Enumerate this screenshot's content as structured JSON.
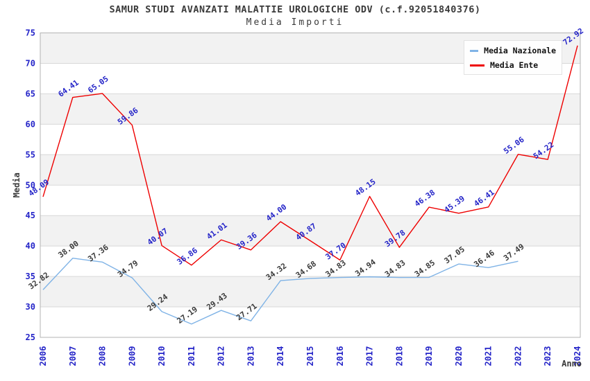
{
  "figure": {
    "background": "#ffffff"
  },
  "chart_data": {
    "type": "line",
    "title": "SAMUR STUDI AVANZATI MALATTIE UROLOGICHE ODV (c.f.92051840376)",
    "subtitle": "Media Importi",
    "xlabel": "Anno",
    "ylabel": "Media",
    "ylim": [
      25,
      75
    ],
    "ytick_step": 5,
    "yticks": [
      25,
      30,
      35,
      40,
      45,
      50,
      55,
      60,
      65,
      70,
      75
    ],
    "categories": [
      "2006",
      "2007",
      "2008",
      "2009",
      "2010",
      "2011",
      "2012",
      "2013",
      "2014",
      "2015",
      "2016",
      "2017",
      "2018",
      "2019",
      "2020",
      "2021",
      "2022",
      "2023",
      "2024"
    ],
    "series": [
      {
        "name": "Media Nazionale",
        "color": "#7fb3e6",
        "label_color": "#3a3a3a",
        "values": [
          32.82,
          38.0,
          37.36,
          34.79,
          29.24,
          27.19,
          29.43,
          27.71,
          34.32,
          34.68,
          34.83,
          34.94,
          34.83,
          34.85,
          37.05,
          36.46,
          37.49,
          null,
          null
        ]
      },
      {
        "name": "Media Ente",
        "color": "#ee0000",
        "label_color": "#2424c8",
        "values": [
          48.09,
          64.41,
          65.05,
          59.86,
          40.07,
          36.86,
          41.01,
          39.36,
          44.0,
          40.87,
          37.7,
          48.15,
          39.78,
          46.38,
          45.39,
          46.41,
          55.06,
          54.22,
          72.92
        ]
      }
    ],
    "legend": {
      "position": "top-right",
      "entries": [
        {
          "label": "Media Nazionale",
          "color": "#7fb3e6"
        },
        {
          "label": "Media Ente",
          "color": "#ee0000"
        }
      ]
    },
    "style": {
      "tick_label_color": "#2424c8",
      "axis_title_color": "#3a3a3a",
      "band_color": "#f2f2f2",
      "gridline_color": "#d8d8d8",
      "border_color": "#b3b3b3",
      "grid": true,
      "bands": "alternating horizontal, gray on [30-35],[40-45],[50-55],[60-65],[70-75]",
      "value_label_rotation_deg": -36,
      "xtick_rotation_deg": -90
    }
  }
}
